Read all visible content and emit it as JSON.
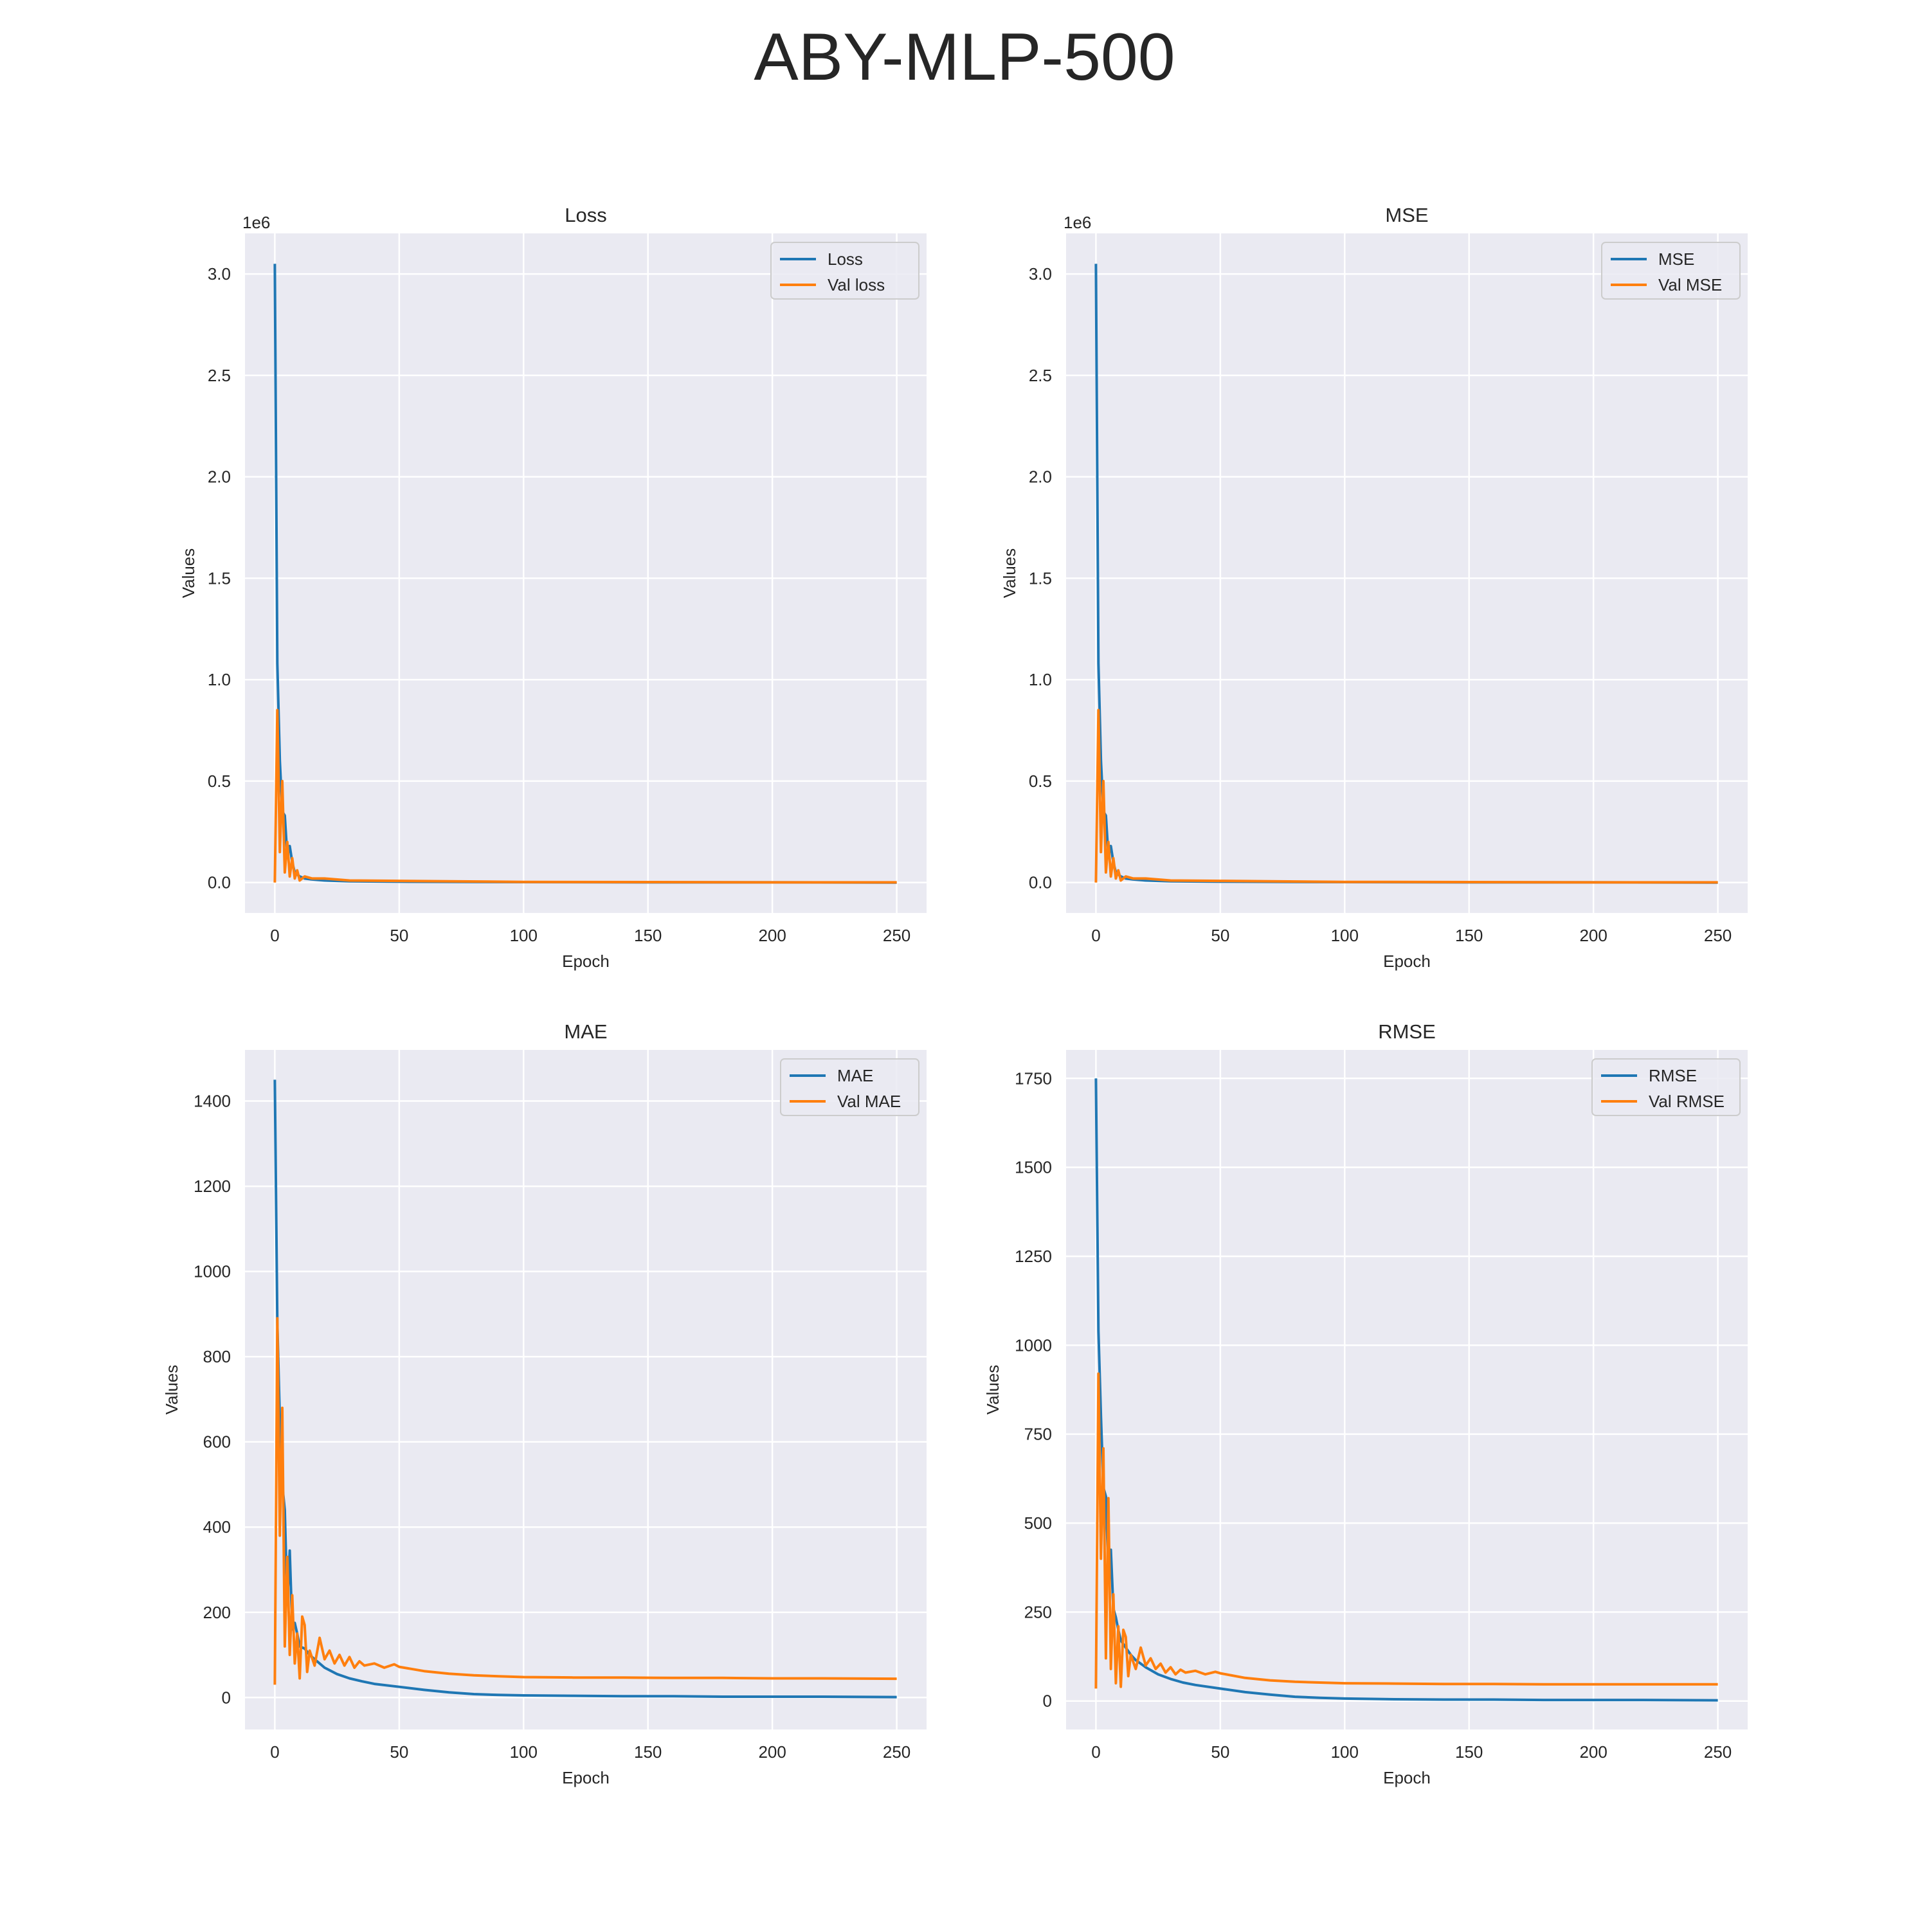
{
  "figure": {
    "title": "ABY-MLP-500"
  },
  "colors": {
    "train": "#1f77b4",
    "val": "#ff7f0e",
    "panel_bg": "#eaeaf2",
    "grid": "#ffffff",
    "text": "#262626"
  },
  "chart_data": [
    {
      "type": "line",
      "title": "Loss",
      "xlabel": "Epoch",
      "ylabel": "Values",
      "y_offset_label": "1e6",
      "xlim": [
        -12,
        262
      ],
      "ylim": [
        -0.15,
        3.2
      ],
      "xticks": [
        0,
        50,
        100,
        150,
        200,
        250
      ],
      "yticks": [
        0.0,
        0.5,
        1.0,
        1.5,
        2.0,
        2.5,
        3.0
      ],
      "ytick_labels": [
        "0.0",
        "0.5",
        "1.0",
        "1.5",
        "2.0",
        "2.5",
        "3.0"
      ],
      "legend_position": "upper right",
      "grid": true,
      "series": [
        {
          "name": "Loss",
          "x": [
            0,
            1,
            2,
            3,
            4,
            5,
            6,
            7,
            8,
            9,
            10,
            12,
            15,
            20,
            30,
            50,
            100,
            150,
            200,
            250
          ],
          "y": [
            3.05,
            1.08,
            0.6,
            0.35,
            0.33,
            0.13,
            0.18,
            0.1,
            0.05,
            0.04,
            0.03,
            0.02,
            0.015,
            0.01,
            0.006,
            0.004,
            0.002,
            0.001,
            0.001,
            0.0
          ]
        },
        {
          "name": "Val loss",
          "x": [
            0,
            1,
            2,
            3,
            4,
            5,
            6,
            7,
            8,
            9,
            10,
            12,
            15,
            20,
            30,
            50,
            100,
            150,
            200,
            250
          ],
          "y": [
            0.0,
            0.85,
            0.15,
            0.5,
            0.05,
            0.2,
            0.03,
            0.12,
            0.02,
            0.06,
            0.01,
            0.03,
            0.02,
            0.02,
            0.01,
            0.008,
            0.003,
            0.002,
            0.001,
            0.001
          ]
        }
      ]
    },
    {
      "type": "line",
      "title": "MSE",
      "xlabel": "Epoch",
      "ylabel": "Values",
      "y_offset_label": "1e6",
      "xlim": [
        -12,
        262
      ],
      "ylim": [
        -0.15,
        3.2
      ],
      "xticks": [
        0,
        50,
        100,
        150,
        200,
        250
      ],
      "yticks": [
        0.0,
        0.5,
        1.0,
        1.5,
        2.0,
        2.5,
        3.0
      ],
      "ytick_labels": [
        "0.0",
        "0.5",
        "1.0",
        "1.5",
        "2.0",
        "2.5",
        "3.0"
      ],
      "legend_position": "upper right",
      "grid": true,
      "series": [
        {
          "name": "MSE",
          "x": [
            0,
            1,
            2,
            3,
            4,
            5,
            6,
            7,
            8,
            9,
            10,
            12,
            15,
            20,
            30,
            50,
            100,
            150,
            200,
            250
          ],
          "y": [
            3.05,
            1.08,
            0.6,
            0.35,
            0.33,
            0.13,
            0.18,
            0.1,
            0.05,
            0.04,
            0.03,
            0.02,
            0.015,
            0.01,
            0.006,
            0.004,
            0.002,
            0.001,
            0.001,
            0.0
          ]
        },
        {
          "name": "Val MSE",
          "x": [
            0,
            1,
            2,
            3,
            4,
            5,
            6,
            7,
            8,
            9,
            10,
            12,
            15,
            20,
            30,
            50,
            100,
            150,
            200,
            250
          ],
          "y": [
            0.0,
            0.85,
            0.15,
            0.5,
            0.05,
            0.2,
            0.03,
            0.12,
            0.02,
            0.06,
            0.01,
            0.03,
            0.02,
            0.02,
            0.01,
            0.008,
            0.003,
            0.002,
            0.001,
            0.001
          ]
        }
      ]
    },
    {
      "type": "line",
      "title": "MAE",
      "xlabel": "Epoch",
      "ylabel": "Values",
      "y_offset_label": "",
      "xlim": [
        -12,
        262
      ],
      "ylim": [
        -75,
        1520
      ],
      "xticks": [
        0,
        50,
        100,
        150,
        200,
        250
      ],
      "yticks": [
        0,
        200,
        400,
        600,
        800,
        1000,
        1200,
        1400
      ],
      "ytick_labels": [
        "0",
        "200",
        "400",
        "600",
        "800",
        "1000",
        "1200",
        "1400"
      ],
      "legend_position": "upper right",
      "grid": true,
      "series": [
        {
          "name": "MAE",
          "x": [
            0,
            1,
            2,
            3,
            4,
            5,
            6,
            7,
            8,
            9,
            10,
            12,
            14,
            16,
            18,
            20,
            25,
            30,
            35,
            40,
            50,
            60,
            70,
            80,
            90,
            100,
            120,
            140,
            160,
            180,
            200,
            220,
            250
          ],
          "y": [
            1450,
            880,
            650,
            500,
            440,
            220,
            345,
            160,
            175,
            150,
            120,
            115,
            100,
            90,
            80,
            70,
            55,
            45,
            38,
            32,
            25,
            18,
            12,
            8,
            6,
            5,
            4,
            3,
            3,
            2,
            2,
            2,
            1
          ]
        },
        {
          "name": "Val MAE",
          "x": [
            0,
            1,
            2,
            3,
            4,
            5,
            6,
            7,
            8,
            9,
            10,
            11,
            12,
            13,
            14,
            16,
            18,
            20,
            22,
            24,
            26,
            28,
            30,
            32,
            34,
            36,
            40,
            44,
            48,
            50,
            60,
            70,
            80,
            90,
            100,
            120,
            140,
            160,
            180,
            200,
            220,
            250
          ],
          "y": [
            30,
            890,
            380,
            680,
            120,
            330,
            100,
            240,
            80,
            150,
            45,
            190,
            170,
            60,
            110,
            75,
            140,
            90,
            110,
            80,
            100,
            75,
            95,
            70,
            85,
            75,
            80,
            70,
            78,
            72,
            62,
            56,
            52,
            50,
            48,
            47,
            47,
            46,
            46,
            45,
            45,
            44
          ]
        }
      ]
    },
    {
      "type": "line",
      "title": "RMSE",
      "xlabel": "Epoch",
      "ylabel": "Values",
      "y_offset_label": "",
      "xlim": [
        -12,
        262
      ],
      "ylim": [
        -80,
        1830
      ],
      "xticks": [
        0,
        50,
        100,
        150,
        200,
        250
      ],
      "yticks": [
        0,
        250,
        500,
        750,
        1000,
        1250,
        1500,
        1750
      ],
      "ytick_labels": [
        "0",
        "250",
        "500",
        "750",
        "1000",
        "1250",
        "1500",
        "1750"
      ],
      "legend_position": "upper right",
      "grid": true,
      "series": [
        {
          "name": "RMSE",
          "x": [
            0,
            1,
            2,
            3,
            4,
            5,
            6,
            7,
            8,
            9,
            10,
            12,
            14,
            16,
            18,
            20,
            25,
            30,
            35,
            40,
            50,
            60,
            70,
            80,
            90,
            100,
            120,
            140,
            160,
            180,
            200,
            220,
            250
          ],
          "y": [
            1750,
            1040,
            800,
            600,
            575,
            360,
            425,
            260,
            235,
            200,
            170,
            150,
            130,
            115,
            105,
            95,
            75,
            62,
            52,
            45,
            35,
            25,
            18,
            12,
            9,
            7,
            5,
            4,
            4,
            3,
            3,
            3,
            2
          ]
        },
        {
          "name": "Val RMSE",
          "x": [
            0,
            1,
            2,
            3,
            4,
            5,
            6,
            7,
            8,
            9,
            10,
            11,
            12,
            13,
            14,
            16,
            18,
            20,
            22,
            24,
            26,
            28,
            30,
            32,
            34,
            36,
            40,
            44,
            48,
            50,
            60,
            70,
            80,
            90,
            100,
            120,
            140,
            160,
            180,
            200,
            220,
            250
          ],
          "y": [
            35,
            920,
            400,
            710,
            120,
            570,
            90,
            300,
            50,
            210,
            40,
            200,
            180,
            70,
            130,
            90,
            150,
            100,
            120,
            90,
            105,
            80,
            95,
            75,
            88,
            80,
            85,
            75,
            82,
            78,
            65,
            58,
            54,
            52,
            50,
            49,
            48,
            48,
            47,
            47,
            47,
            47
          ]
        }
      ]
    }
  ]
}
